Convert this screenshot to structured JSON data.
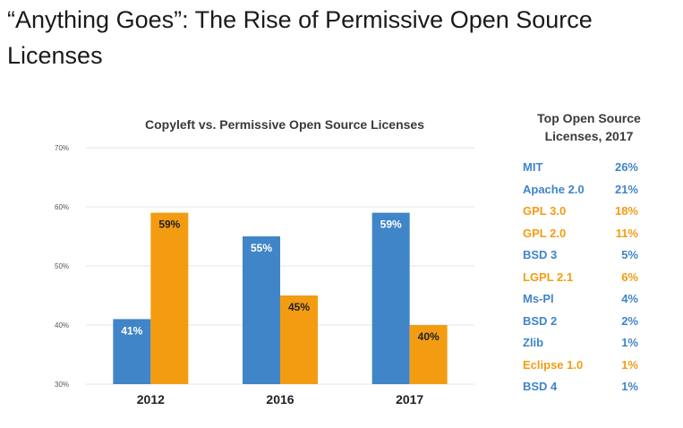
{
  "page": {
    "heading": "“Anything Goes”: The Rise of Permissive Open Source Licenses"
  },
  "colors": {
    "copyleft": "#f39c12",
    "permissive": "#3f85c8",
    "grid": "#e6e6e6",
    "axis_text": "#555555"
  },
  "chart_data": [
    {
      "type": "bar",
      "title": "Copyleft vs. Permissive Open Source Licenses",
      "xlabel": "",
      "ylabel": "",
      "categories": [
        "2012",
        "2016",
        "2017"
      ],
      "series": [
        {
          "color": "#3f85c8",
          "values": [
            41,
            55,
            59
          ]
        },
        {
          "color": "#f39c12",
          "values": [
            59,
            45,
            40
          ]
        }
      ],
      "data_labels": [
        [
          "41%",
          "55%",
          "59%"
        ],
        [
          "59%",
          "45%",
          "40%"
        ]
      ],
      "ylim": [
        30,
        70
      ],
      "yticks": [
        {
          "value": 30,
          "label": "30%"
        },
        {
          "value": 40,
          "label": "40%"
        },
        {
          "value": 50,
          "label": "50%"
        },
        {
          "value": 60,
          "label": "60%"
        },
        {
          "value": 70,
          "label": "70%"
        }
      ],
      "grid": true,
      "legend": "none"
    },
    {
      "type": "table",
      "title": "Top Open Source Licenses, 2017",
      "rows": [
        {
          "name": "MIT",
          "value": "26%",
          "category": "permissive"
        },
        {
          "name": "Apache 2.0",
          "value": "21%",
          "category": "permissive"
        },
        {
          "name": "GPL 3.0",
          "value": "18%",
          "category": "copyleft"
        },
        {
          "name": "GPL 2.0",
          "value": "11%",
          "category": "copyleft"
        },
        {
          "name": "BSD 3",
          "value": "5%",
          "category": "permissive"
        },
        {
          "name": "LGPL 2.1",
          "value": "6%",
          "category": "copyleft"
        },
        {
          "name": "Ms-Pl",
          "value": "4%",
          "category": "permissive"
        },
        {
          "name": "BSD 2",
          "value": "2%",
          "category": "permissive"
        },
        {
          "name": "Zlib",
          "value": "1%",
          "category": "permissive"
        },
        {
          "name": "Eclipse 1.0",
          "value": "1%",
          "category": "copyleft"
        },
        {
          "name": "BSD 4",
          "value": "1%",
          "category": "permissive"
        }
      ]
    }
  ]
}
